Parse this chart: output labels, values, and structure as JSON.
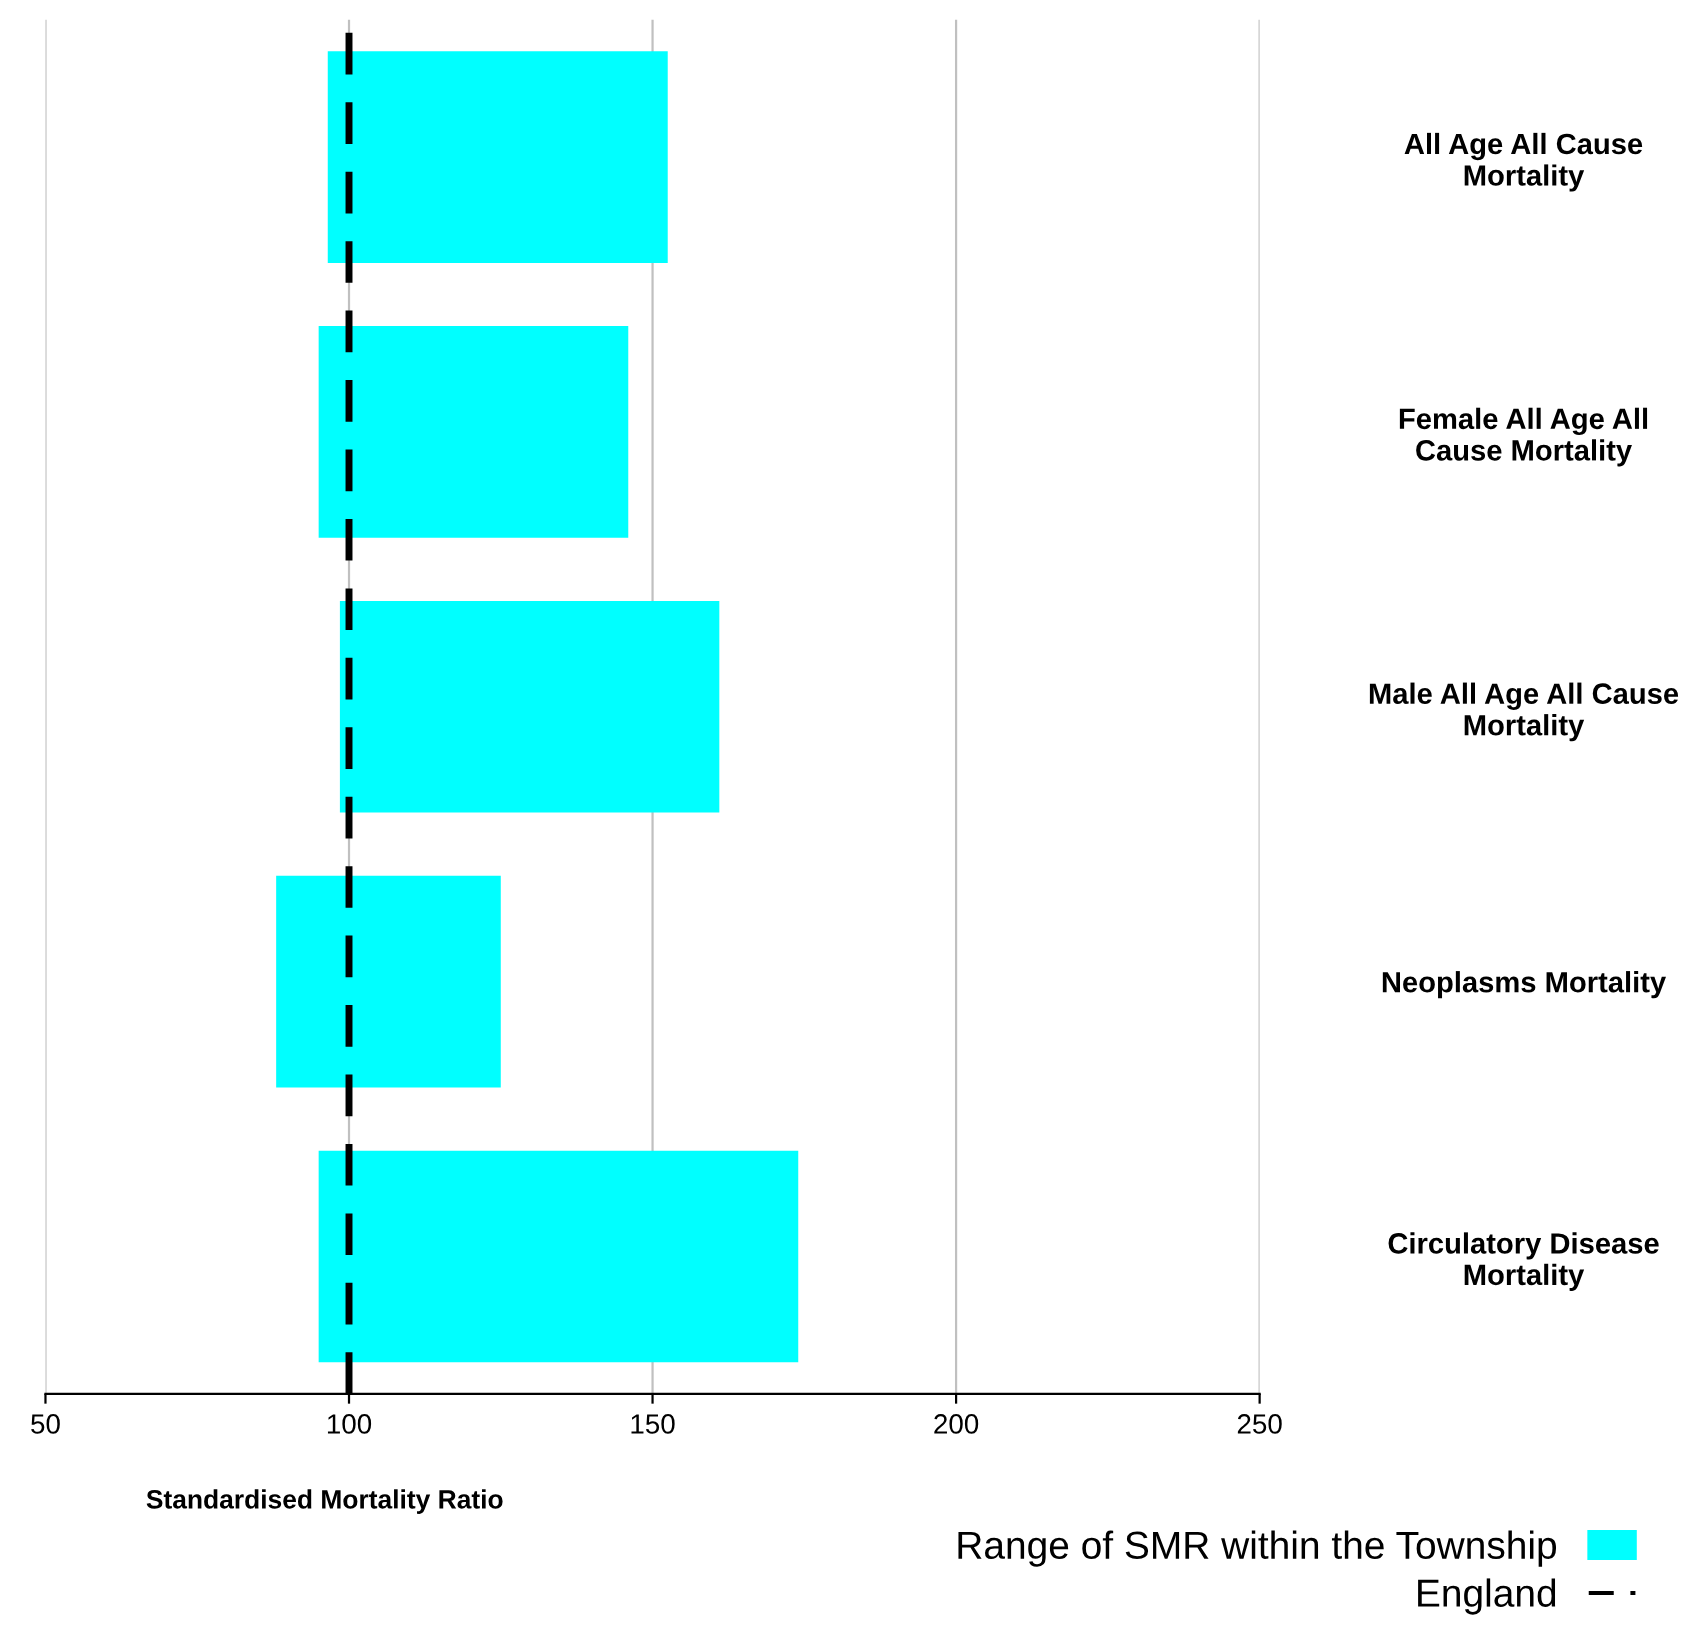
{
  "chart_data": {
    "type": "bar",
    "orientation": "horizontal",
    "categories": [
      "All Age All Cause Mortality",
      "Female All Age All Cause Mortality",
      "Male All Age All Cause Mortality",
      "Neoplasms Mortality",
      "Circulatory Disease Mortality"
    ],
    "series": [
      {
        "name": "Range of SMR within the Township",
        "color": "#00ffff",
        "base": [
          96.5,
          95,
          98.5,
          88,
          95
        ],
        "values": [
          56,
          51,
          62.5,
          37,
          79
        ]
      }
    ],
    "xlim": [
      50,
      250
    ],
    "xticks": [
      50,
      100,
      150,
      200,
      250
    ],
    "xlabel": "Standardised Mortality Ratio",
    "ref_lines": [
      {
        "axis": "x",
        "value": 100,
        "label": "England",
        "color": "#000000",
        "line_style": "dashed"
      }
    ],
    "grid": "x",
    "legend": "bottom right"
  }
}
